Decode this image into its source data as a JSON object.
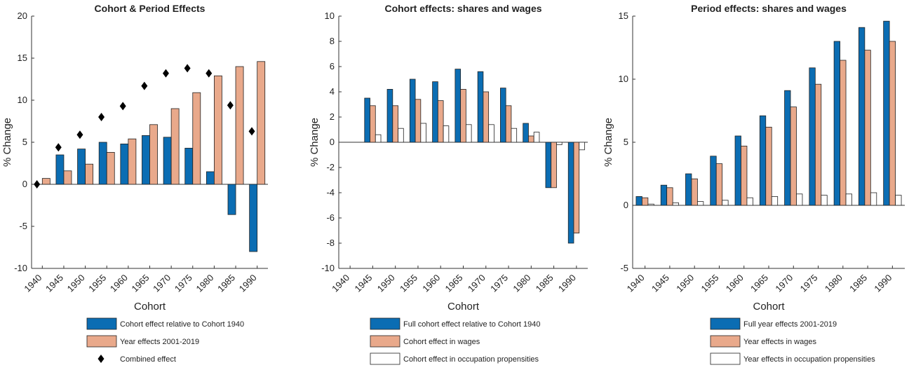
{
  "chart_data": [
    {
      "type": "bar",
      "title": "Cohort & Period Effects",
      "y_label": "% Change",
      "x_label": "Cohort",
      "categories": [
        "1940",
        "1945",
        "1950",
        "1955",
        "1960",
        "1965",
        "1970",
        "1975",
        "1980",
        "1985",
        "1990"
      ],
      "ylim": [
        -10,
        20
      ],
      "yticks": [
        -10,
        -5,
        0,
        5,
        10,
        15,
        20
      ],
      "series": [
        {
          "name": "Cohort effect relative to Cohort 1940",
          "color": "#0b6db3",
          "values": [
            0,
            3.5,
            4.2,
            5.0,
            4.8,
            5.8,
            5.6,
            4.3,
            1.5,
            -3.6,
            -8.0
          ]
        },
        {
          "name": "Year effects 2001-2019",
          "color": "#e9a98b",
          "values": [
            0.7,
            1.6,
            2.4,
            3.8,
            5.4,
            7.1,
            9.0,
            10.9,
            12.9,
            14.0,
            14.6
          ]
        },
        {
          "name": "Combined effect",
          "color": "#000000",
          "marker": "diamond",
          "values": [
            0,
            4.4,
            5.9,
            8.0,
            9.3,
            11.7,
            13.2,
            13.8,
            13.2,
            9.4,
            6.3
          ]
        }
      ]
    },
    {
      "type": "bar",
      "title": "Cohort effects: shares and wages",
      "y_label": "% Change",
      "x_label": "Cohort",
      "categories": [
        "1940",
        "1945",
        "1950",
        "1955",
        "1960",
        "1965",
        "1970",
        "1975",
        "1980",
        "1985",
        "1990"
      ],
      "ylim": [
        -10,
        10
      ],
      "yticks": [
        -10,
        -8,
        -6,
        -4,
        -2,
        0,
        2,
        4,
        6,
        8,
        10
      ],
      "series": [
        {
          "name": "Full cohort effect relative to Cohort 1940",
          "color": "#0b6db3",
          "values": [
            0,
            3.5,
            4.2,
            5.0,
            4.8,
            5.8,
            5.6,
            4.3,
            1.5,
            -3.6,
            -8.0
          ]
        },
        {
          "name": "Cohort effect in wages",
          "color": "#e9a98b",
          "values": [
            0,
            2.9,
            2.9,
            3.4,
            3.3,
            4.2,
            4.0,
            2.9,
            0.5,
            -3.6,
            -7.2
          ]
        },
        {
          "name": "Cohort effect in occupation propensities",
          "color": "#ffffff",
          "values": [
            0,
            0.6,
            1.1,
            1.5,
            1.3,
            1.4,
            1.4,
            1.1,
            0.8,
            -0.2,
            -0.6
          ]
        }
      ]
    },
    {
      "type": "bar",
      "title": "Period effects: shares and wages",
      "y_label": "% Change",
      "x_label": "Cohort",
      "categories": [
        "1940",
        "1945",
        "1950",
        "1955",
        "1960",
        "1965",
        "1970",
        "1975",
        "1980",
        "1985",
        "1990"
      ],
      "ylim": [
        -5,
        15
      ],
      "yticks": [
        -5,
        0,
        5,
        10,
        15
      ],
      "series": [
        {
          "name": "Full year effects 2001-2019",
          "color": "#0b6db3",
          "values": [
            0.7,
            1.6,
            2.5,
            3.9,
            5.5,
            7.1,
            9.1,
            10.9,
            13.0,
            14.1,
            14.6
          ]
        },
        {
          "name": "Year effects in wages",
          "color": "#e9a98b",
          "values": [
            0.6,
            1.4,
            2.1,
            3.3,
            4.7,
            6.2,
            7.8,
            9.6,
            11.5,
            12.3,
            13.0
          ]
        },
        {
          "name": "Year effects in occupation propensities",
          "color": "#ffffff",
          "values": [
            0.1,
            0.2,
            0.3,
            0.4,
            0.6,
            0.7,
            0.9,
            0.8,
            0.9,
            1.0,
            0.8
          ]
        }
      ]
    }
  ]
}
